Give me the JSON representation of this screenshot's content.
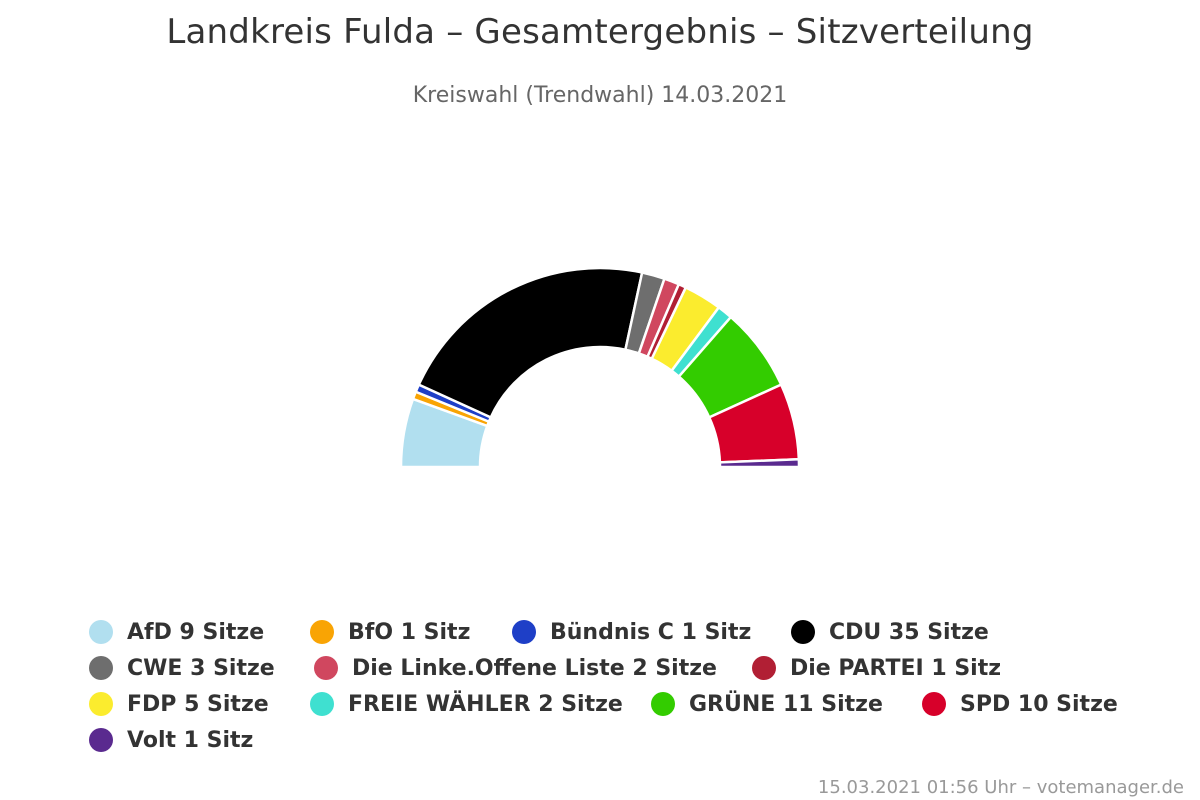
{
  "title": "Landkreis Fulda – Gesamtergebnis – Sitzverteilung",
  "subtitle": "Kreiswahl (Trendwahl) 14.03.2021",
  "credits": "15.03.2021 01:56 Uhr – votemanager.de",
  "chart_data": {
    "type": "pie",
    "subtype": "semicircle-parliament",
    "unit": "Sitze",
    "total_seats": 81,
    "series": [
      {
        "name": "AfD",
        "seats": 9,
        "label": "AfD 9 Sitze",
        "color": "#b1dfef"
      },
      {
        "name": "BfO",
        "seats": 1,
        "label": "BfO 1 Sitz",
        "color": "#f9a404"
      },
      {
        "name": "Bündnis C",
        "seats": 1,
        "label": "Bündnis C 1 Sitz",
        "color": "#1e3fc7"
      },
      {
        "name": "CDU",
        "seats": 35,
        "label": "CDU 35 Sitze",
        "color": "#000000"
      },
      {
        "name": "CWE",
        "seats": 3,
        "label": "CWE 3 Sitze",
        "color": "#6e6e6e"
      },
      {
        "name": "Die Linke.Offene Liste",
        "seats": 2,
        "label": "Die Linke.Offene Liste 2 Sitze",
        "color": "#d0475f"
      },
      {
        "name": "Die PARTEI",
        "seats": 1,
        "label": "Die PARTEI 1 Sitz",
        "color": "#b11f34"
      },
      {
        "name": "FDP",
        "seats": 5,
        "label": "FDP 5 Sitze",
        "color": "#fbec2e"
      },
      {
        "name": "FREIE WÄHLER",
        "seats": 2,
        "label": "FREIE WÄHLER 2 Sitze",
        "color": "#3fe0d0"
      },
      {
        "name": "GRÜNE",
        "seats": 11,
        "label": "GRÜNE 11 Sitze",
        "color": "#33cc00"
      },
      {
        "name": "SPD",
        "seats": 10,
        "label": "SPD 10 Sitze",
        "color": "#d7002a"
      },
      {
        "name": "Volt",
        "seats": 1,
        "label": "Volt 1 Sitz",
        "color": "#5a2a8f"
      }
    ]
  }
}
